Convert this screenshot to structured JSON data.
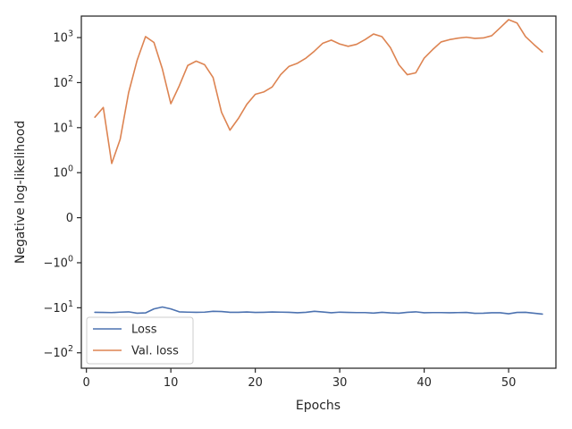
{
  "chart_data": {
    "type": "line",
    "title": "",
    "xlabel": "Epochs",
    "ylabel": "Negative log-likelihood",
    "xlim": [
      -0.6,
      55.6
    ],
    "x_ticks": [
      0,
      10,
      20,
      30,
      40,
      50
    ],
    "yscale": "symlog",
    "ylim": [
      -220,
      3000
    ],
    "y_ticks": [
      {
        "value": 1000,
        "label": "10^3"
      },
      {
        "value": 100,
        "label": "10^2"
      },
      {
        "value": 10,
        "label": "10^1"
      },
      {
        "value": 1,
        "label": "10^0"
      },
      {
        "value": 0,
        "label": "0"
      },
      {
        "value": -1,
        "label": "-10^0"
      },
      {
        "value": -10,
        "label": "-10^1"
      },
      {
        "value": -100,
        "label": "-10^2"
      }
    ],
    "grid": false,
    "legend_position": "lower-left",
    "x": [
      1,
      2,
      3,
      4,
      5,
      6,
      7,
      8,
      9,
      10,
      11,
      12,
      13,
      14,
      15,
      16,
      17,
      18,
      19,
      20,
      21,
      22,
      23,
      24,
      25,
      26,
      27,
      28,
      29,
      30,
      31,
      32,
      33,
      34,
      35,
      36,
      37,
      38,
      39,
      40,
      41,
      42,
      43,
      44,
      45,
      46,
      47,
      48,
      49,
      50,
      51,
      52,
      53,
      54
    ],
    "series": [
      {
        "name": "Loss",
        "color": "#4c72b0",
        "values": [
          -12.6,
          -12.7,
          -12.8,
          -12.5,
          -12.3,
          -13.2,
          -13.0,
          -10.6,
          -9.6,
          -10.6,
          -12.3,
          -12.5,
          -12.6,
          -12.5,
          -12.0,
          -12.1,
          -12.6,
          -12.6,
          -12.4,
          -12.7,
          -12.6,
          -12.4,
          -12.5,
          -12.6,
          -12.9,
          -12.6,
          -12.0,
          -12.4,
          -12.9,
          -12.5,
          -12.7,
          -12.8,
          -12.8,
          -13.1,
          -12.6,
          -13.0,
          -13.2,
          -12.6,
          -12.3,
          -12.9,
          -12.8,
          -12.8,
          -12.9,
          -12.8,
          -12.7,
          -13.3,
          -13.2,
          -12.9,
          -12.9,
          -13.6,
          -12.7,
          -12.6,
          -13.2,
          -13.8
        ]
      },
      {
        "name": "Val. loss",
        "color": "#dd8452",
        "values": [
          17,
          28,
          1.6,
          5.5,
          60,
          310,
          1050,
          780,
          200,
          34,
          85,
          240,
          300,
          250,
          130,
          22,
          8.8,
          16,
          33,
          55,
          62,
          80,
          150,
          230,
          270,
          350,
          500,
          750,
          880,
          720,
          640,
          710,
          900,
          1200,
          1050,
          600,
          250,
          150,
          165,
          350,
          540,
          800,
          900,
          970,
          1020,
          960,
          980,
          1100,
          1650,
          2500,
          2100,
          1050,
          700,
          480
        ]
      }
    ]
  }
}
